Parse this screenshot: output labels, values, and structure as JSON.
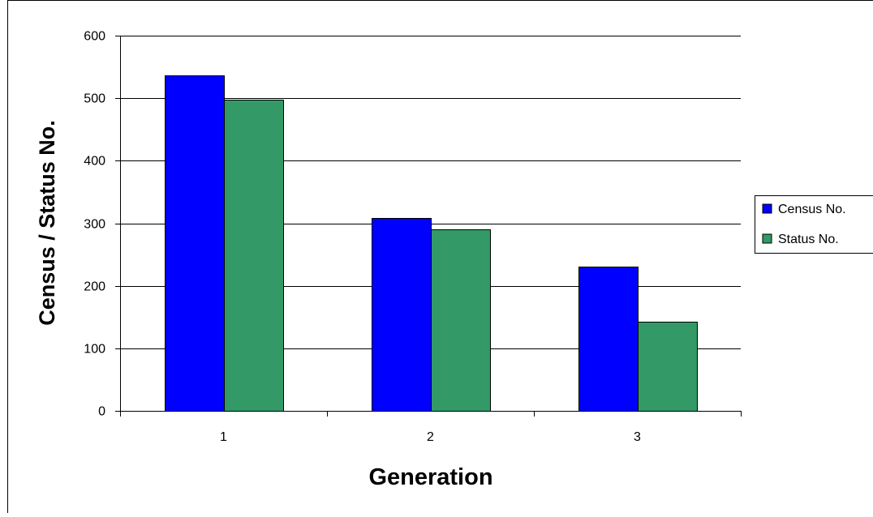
{
  "chart_data": {
    "type": "bar",
    "title": "",
    "xlabel": "Generation",
    "ylabel": "Census / Status No.",
    "categories": [
      "1",
      "2",
      "3"
    ],
    "series": [
      {
        "name": "Census No.",
        "color": "#0000ff",
        "values": [
          536,
          309,
          231
        ]
      },
      {
        "name": "Status No.",
        "color": "#339966",
        "values": [
          497,
          290,
          142
        ]
      }
    ],
    "ylim": [
      0,
      600
    ],
    "yticks": [
      "0",
      "100",
      "200",
      "300",
      "400",
      "500",
      "600"
    ],
    "grid": true,
    "legend_position": "right"
  }
}
